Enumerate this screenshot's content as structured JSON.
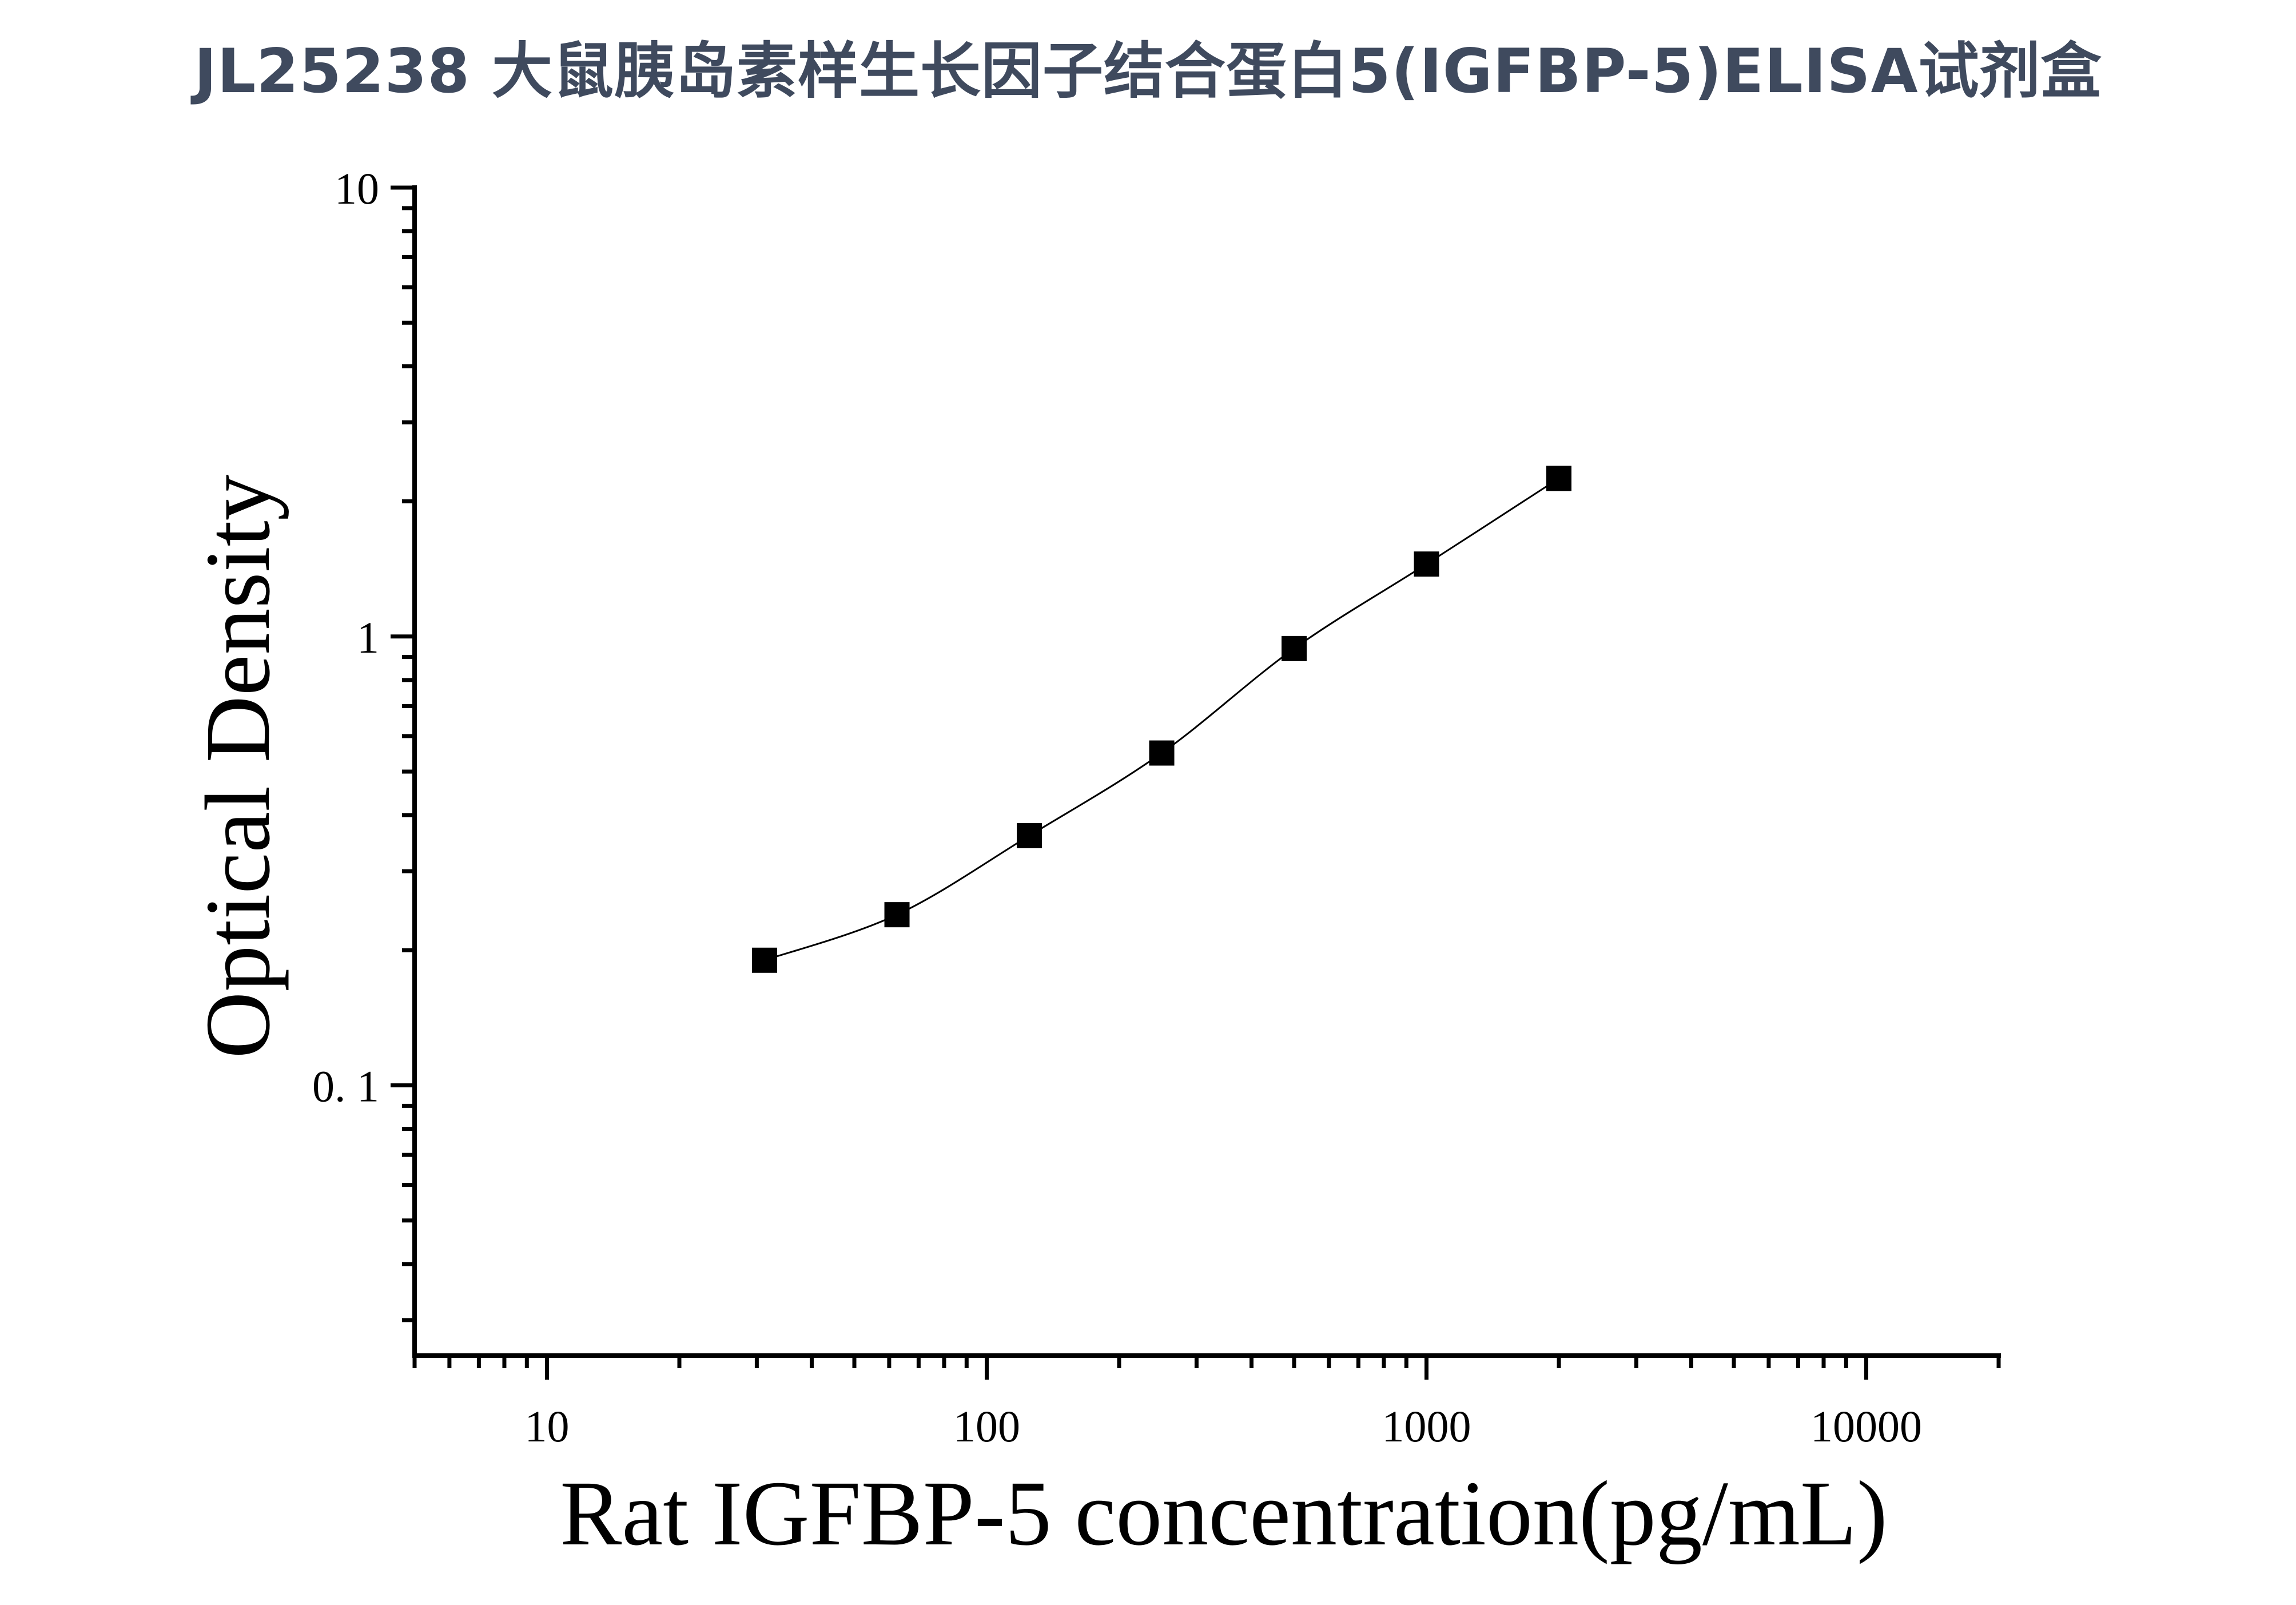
{
  "title": "JL25238 大鼠胰岛素样生长因子结合蛋白5(IGFBP-5)ELISA试剂盒",
  "chart_data": {
    "type": "scatter",
    "title": "JL25238 大鼠胰岛素样生长因子结合蛋白5(IGFBP-5)ELISA试剂盒",
    "xlabel": "Rat IGFBP-5 concentration(pg/mL)",
    "ylabel": "Optical Density",
    "x_scale": "log",
    "y_scale": "log",
    "xlim": [
      5,
      20000
    ],
    "ylim": [
      0.025,
      10
    ],
    "x_ticks": [
      10,
      100,
      1000,
      10000
    ],
    "x_tick_labels": [
      "10",
      "100",
      "1000",
      "10000"
    ],
    "y_ticks": [
      0.1,
      1,
      10
    ],
    "y_tick_labels": [
      "0. 1",
      "1",
      "10"
    ],
    "grid": false,
    "legend": "none",
    "marker": "square",
    "fit_curve": true,
    "color": "#000000",
    "series": [
      {
        "x": [
          31.25,
          62.5,
          125,
          250,
          500,
          1000,
          2000
        ],
        "y": [
          0.19,
          0.24,
          0.36,
          0.55,
          0.94,
          1.45,
          2.25
        ]
      }
    ]
  }
}
